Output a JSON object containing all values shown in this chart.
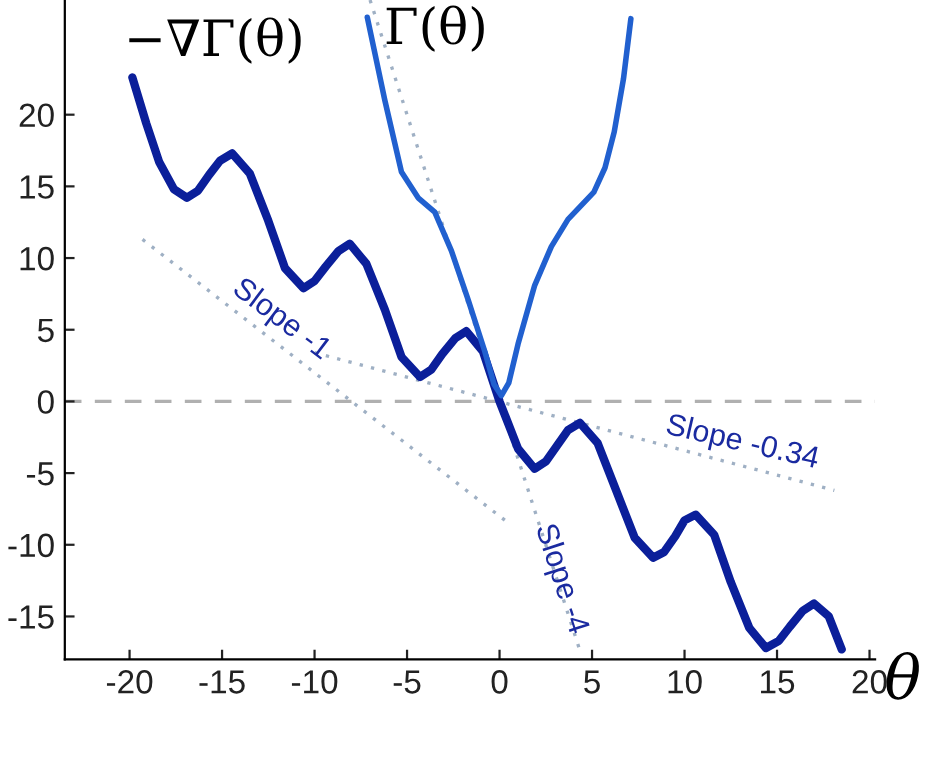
{
  "chart_data": {
    "type": "line",
    "xlabel": "θ",
    "xlim": [
      -23.5,
      20.3
    ],
    "ylim": [
      -18,
      28
    ],
    "xticks": [
      -20,
      -15,
      -10,
      -5,
      0,
      5,
      10,
      15,
      20
    ],
    "yticks": [
      -15,
      -10,
      -5,
      0,
      5,
      10,
      15,
      20
    ],
    "grid": false,
    "series": [
      {
        "name": "−∇Γ(θ)",
        "color": "#0b1f9a",
        "x": [
          -19.85,
          -19.1,
          -18.4,
          -17.6,
          -16.9,
          -16.3,
          -15.7,
          -15.1,
          -14.45,
          -13.5,
          -12.5,
          -11.6,
          -10.6,
          -10,
          -9.4,
          -8.7,
          -8.1,
          -7.2,
          -6.2,
          -5.3,
          -4.3,
          -3.7,
          -3.1,
          -2.4,
          -1.8,
          -0.9,
          0,
          1,
          1.9,
          2.5,
          3.1,
          3.7,
          4.35,
          5.3,
          6.3,
          7.3,
          8.3,
          8.9,
          9.5,
          10,
          10.6,
          11.6,
          12.5,
          13.5,
          14.4,
          15.1,
          15.7,
          16.4,
          17,
          17.8,
          18.5
        ],
        "values": [
          22.6,
          19.4,
          16.7,
          14.8,
          14.2,
          14.7,
          15.8,
          16.8,
          17.3,
          15.9,
          12.6,
          9.3,
          7.9,
          8.4,
          9.4,
          10.5,
          11,
          9.6,
          6.4,
          3.1,
          1.7,
          2.2,
          3.3,
          4.4,
          4.9,
          3.5,
          0,
          -3.3,
          -4.7,
          -4.2,
          -3.1,
          -2,
          -1.5,
          -2.9,
          -6.2,
          -9.5,
          -10.9,
          -10.5,
          -9.4,
          -8.3,
          -7.9,
          -9.3,
          -12.6,
          -15.8,
          -17.2,
          -16.7,
          -15.7,
          -14.6,
          -14.1,
          -15,
          -17.3
        ]
      },
      {
        "name": "Γ(θ)",
        "color": "#2160cf",
        "x": [
          -7.15,
          -6.2,
          -5.3,
          -4.4,
          -3.5,
          -2.6,
          -1.7,
          -0.8,
          -0.3,
          0.1,
          0.5,
          1,
          1.9,
          2.8,
          3.7,
          5.1,
          5.7,
          6.2,
          6.7,
          7.1
        ],
        "values": [
          26.8,
          21,
          16,
          14.2,
          13.2,
          10.5,
          7.1,
          3.5,
          1.2,
          0.4,
          1.3,
          4,
          8.1,
          10.8,
          12.7,
          14.6,
          16.3,
          18.8,
          22.5,
          26.7
        ]
      },
      {
        "color": "#9fb0c4",
        "line_style": "dotted",
        "x": [
          -19.3,
          0.5
        ],
        "values": [
          11.3,
          -8.5
        ]
      },
      {
        "color": "#9fb0c4",
        "line_style": "dotted",
        "x": [
          -7,
          4.4
        ],
        "values": [
          28,
          -17.6
        ]
      },
      {
        "color": "#9fb0c4",
        "line_style": "dotted",
        "x": [
          -10,
          18.1
        ],
        "values": [
          3.4,
          -6.2
        ]
      }
    ],
    "ref_lines": [
      {
        "axis": "y",
        "value": 0,
        "color": "#b0b0b0",
        "line_style": "dashed"
      }
    ],
    "annotations": [
      "Slope -1",
      "Slope -0.34",
      "Slope -4"
    ]
  }
}
